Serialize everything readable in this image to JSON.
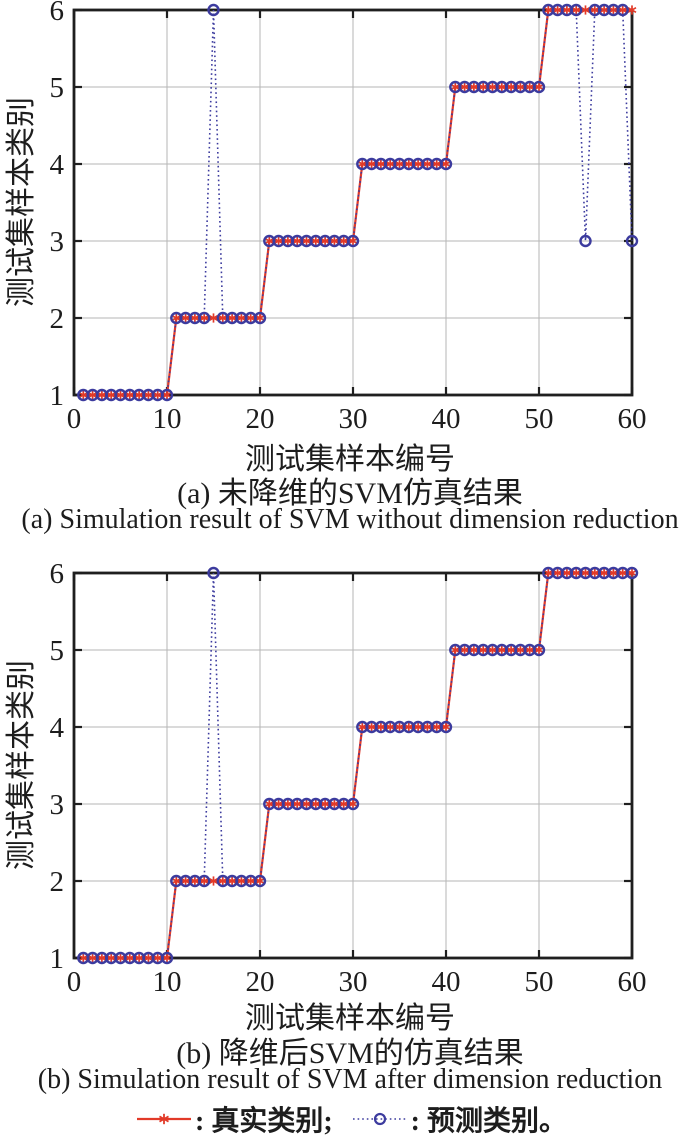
{
  "colors": {
    "true_series": "#e23a28",
    "pred_series": "#3c3b9e",
    "grid": "#b5b5b5",
    "axis": "#1f1f1f",
    "text": "#1d1d1d",
    "background": "#ffffff"
  },
  "figures": [
    {
      "id": "a",
      "xlabel": "测试集样本编号",
      "ylabel": "测试集样本类别",
      "caption_zh": "(a) 未降维的SVM仿真结果",
      "caption_en": "(a) Simulation result of SVM without dimension reduction"
    },
    {
      "id": "b",
      "xlabel": "测试集样本编号",
      "ylabel": "测试集样本类别",
      "caption_zh": "(b) 降维后SVM的仿真结果",
      "caption_en": "(b) Simulation result of SVM after dimension reduction"
    }
  ],
  "legend": {
    "true_label": ": 真实类别;",
    "pred_label": ": 预测类别。"
  },
  "chart_data": [
    {
      "type": "line",
      "title": "(a) 未降维的SVM仿真结果",
      "xlabel": "测试集样本编号",
      "ylabel": "测试集样本类别",
      "xlim": [
        0,
        60
      ],
      "ylim": [
        1,
        6
      ],
      "xticks": [
        0,
        10,
        20,
        30,
        40,
        50,
        60
      ],
      "yticks": [
        1,
        2,
        3,
        4,
        5,
        6
      ],
      "grid": true,
      "legend_position": "below-figure",
      "x": [
        1,
        2,
        3,
        4,
        5,
        6,
        7,
        8,
        9,
        10,
        11,
        12,
        13,
        14,
        15,
        16,
        17,
        18,
        19,
        20,
        21,
        22,
        23,
        24,
        25,
        26,
        27,
        28,
        29,
        30,
        31,
        32,
        33,
        34,
        35,
        36,
        37,
        38,
        39,
        40,
        41,
        42,
        43,
        44,
        45,
        46,
        47,
        48,
        49,
        50,
        51,
        52,
        53,
        54,
        55,
        56,
        57,
        58,
        59,
        60
      ],
      "series": [
        {
          "name": "真实类别",
          "style": "solid red line, asterisk marker",
          "values": [
            1,
            1,
            1,
            1,
            1,
            1,
            1,
            1,
            1,
            1,
            2,
            2,
            2,
            2,
            2,
            2,
            2,
            2,
            2,
            2,
            3,
            3,
            3,
            3,
            3,
            3,
            3,
            3,
            3,
            3,
            4,
            4,
            4,
            4,
            4,
            4,
            4,
            4,
            4,
            4,
            5,
            5,
            5,
            5,
            5,
            5,
            5,
            5,
            5,
            5,
            6,
            6,
            6,
            6,
            6,
            6,
            6,
            6,
            6,
            6
          ]
        },
        {
          "name": "预测类别",
          "style": "dotted blue line, open circle marker",
          "values": [
            1,
            1,
            1,
            1,
            1,
            1,
            1,
            1,
            1,
            1,
            2,
            2,
            2,
            2,
            6,
            2,
            2,
            2,
            2,
            2,
            3,
            3,
            3,
            3,
            3,
            3,
            3,
            3,
            3,
            3,
            4,
            4,
            4,
            4,
            4,
            4,
            4,
            4,
            4,
            4,
            5,
            5,
            5,
            5,
            5,
            5,
            5,
            5,
            5,
            5,
            6,
            6,
            6,
            6,
            3,
            6,
            6,
            6,
            6,
            3
          ]
        }
      ]
    },
    {
      "type": "line",
      "title": "(b) 降维后SVM的仿真结果",
      "xlabel": "测试集样本编号",
      "ylabel": "测试集样本类别",
      "xlim": [
        0,
        60
      ],
      "ylim": [
        1,
        6
      ],
      "xticks": [
        0,
        10,
        20,
        30,
        40,
        50,
        60
      ],
      "yticks": [
        1,
        2,
        3,
        4,
        5,
        6
      ],
      "grid": true,
      "legend_position": "below-figure",
      "x": [
        1,
        2,
        3,
        4,
        5,
        6,
        7,
        8,
        9,
        10,
        11,
        12,
        13,
        14,
        15,
        16,
        17,
        18,
        19,
        20,
        21,
        22,
        23,
        24,
        25,
        26,
        27,
        28,
        29,
        30,
        31,
        32,
        33,
        34,
        35,
        36,
        37,
        38,
        39,
        40,
        41,
        42,
        43,
        44,
        45,
        46,
        47,
        48,
        49,
        50,
        51,
        52,
        53,
        54,
        55,
        56,
        57,
        58,
        59,
        60
      ],
      "series": [
        {
          "name": "真实类别",
          "style": "solid red line, asterisk marker",
          "values": [
            1,
            1,
            1,
            1,
            1,
            1,
            1,
            1,
            1,
            1,
            2,
            2,
            2,
            2,
            2,
            2,
            2,
            2,
            2,
            2,
            3,
            3,
            3,
            3,
            3,
            3,
            3,
            3,
            3,
            3,
            4,
            4,
            4,
            4,
            4,
            4,
            4,
            4,
            4,
            4,
            5,
            5,
            5,
            5,
            5,
            5,
            5,
            5,
            5,
            5,
            6,
            6,
            6,
            6,
            6,
            6,
            6,
            6,
            6,
            6
          ]
        },
        {
          "name": "预测类别",
          "style": "dotted blue line, open circle marker",
          "values": [
            1,
            1,
            1,
            1,
            1,
            1,
            1,
            1,
            1,
            1,
            2,
            2,
            2,
            2,
            6,
            2,
            2,
            2,
            2,
            2,
            3,
            3,
            3,
            3,
            3,
            3,
            3,
            3,
            3,
            3,
            4,
            4,
            4,
            4,
            4,
            4,
            4,
            4,
            4,
            4,
            5,
            5,
            5,
            5,
            5,
            5,
            5,
            5,
            5,
            5,
            6,
            6,
            6,
            6,
            6,
            6,
            6,
            6,
            6,
            6
          ]
        }
      ]
    }
  ]
}
